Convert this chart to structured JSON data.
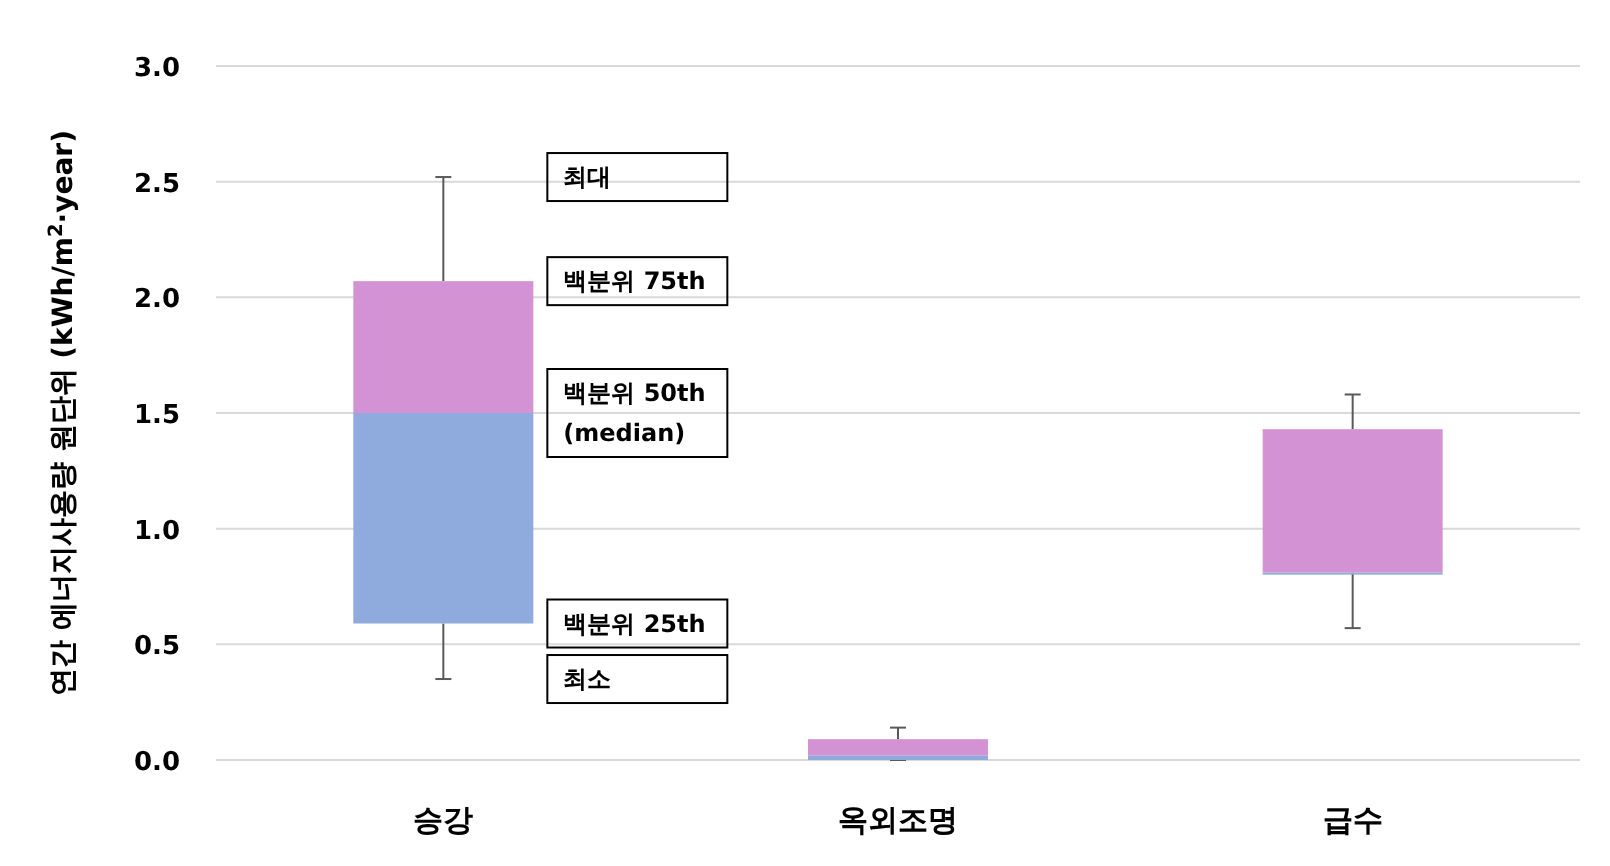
{
  "chart_data": {
    "type": "box",
    "ylabel": "연간 에너지사용량 원단위 (kWh/m$^{2}$·year)",
    "categories": [
      "승강",
      "옥외조명",
      "급수"
    ],
    "boxes": [
      {
        "low": 0.35,
        "q1": 0.59,
        "median": 1.5,
        "q3": 2.07,
        "high": 2.52
      },
      {
        "low": 0.0,
        "q1": 0.0,
        "median": 0.02,
        "q3": 0.09,
        "high": 0.14
      },
      {
        "low": 0.57,
        "q1": 0.81,
        "median": 0.81,
        "q3": 1.43,
        "high": 1.58
      }
    ],
    "colors": [
      [
        "#8faadc",
        "#d392d3"
      ],
      [
        "#8faadc",
        "#d392d3"
      ],
      [
        "#8faadc",
        "#d392d3"
      ]
    ],
    "ylim": [
      0,
      3.0
    ],
    "yticks": [
      {
        "value": 0,
        "label": "0.0"
      },
      0.5,
      {
        "value": 1,
        "label": "1.0"
      },
      1.5,
      {
        "value": 2,
        "label": "2.0"
      },
      2.5,
      {
        "value": 3,
        "label": "3.0"
      }
    ],
    "grid": "y",
    "annotations": [
      "최대",
      "백분위 75th",
      "백분위 50th\n(median)",
      "백분위 25th",
      "최소"
    ]
  }
}
